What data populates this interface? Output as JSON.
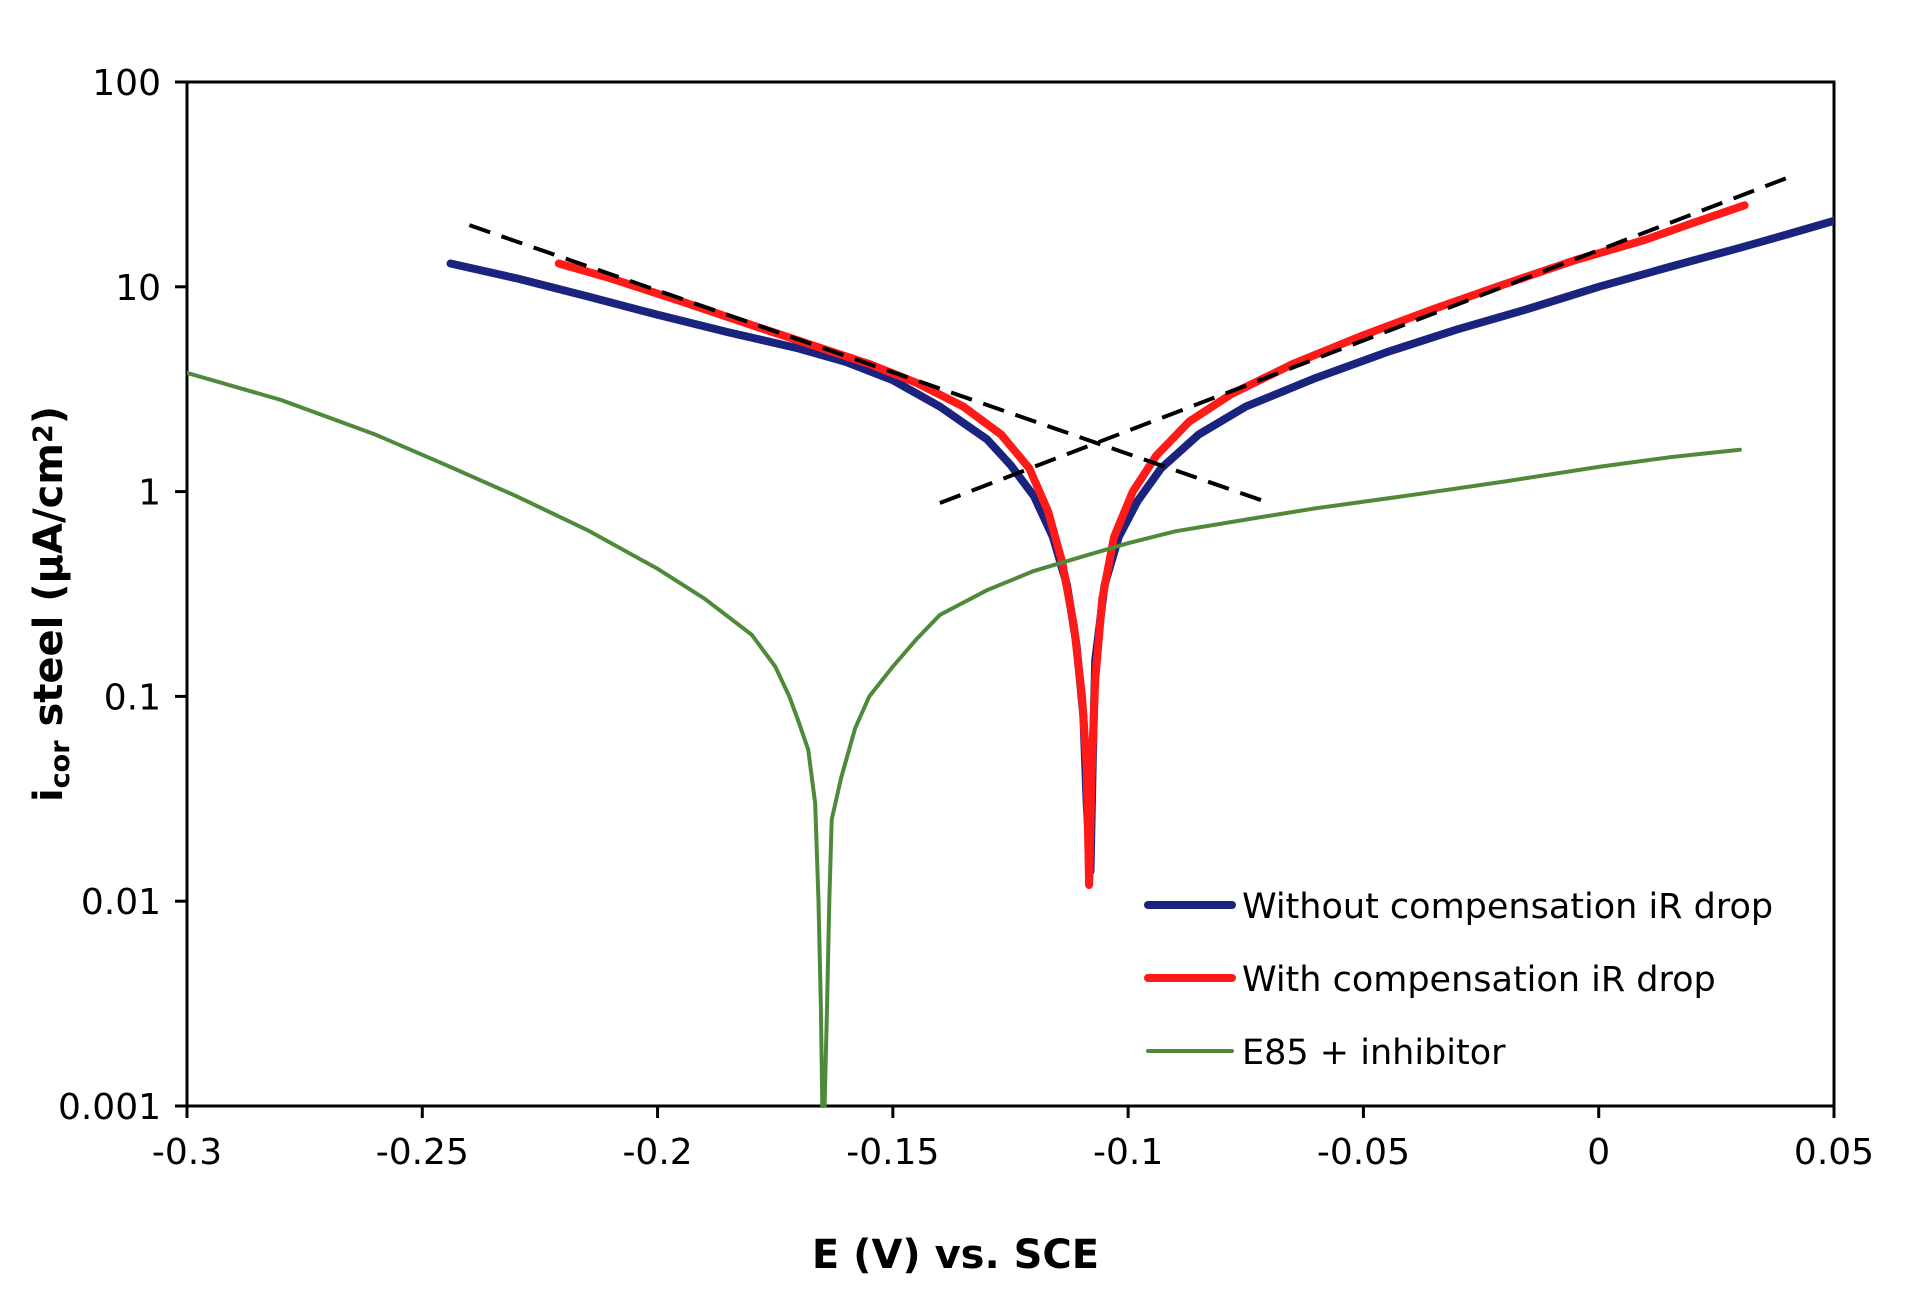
{
  "chart_data": {
    "type": "line",
    "title": "",
    "xlabel": "E (V) vs. SCE",
    "ylabel": {
      "main": "i",
      "sub": "cor",
      "rest": " steel (µA/cm",
      "sup": "2",
      "close": ")"
    },
    "xlim": [
      -0.3,
      0.05
    ],
    "ylim": [
      0.001,
      100
    ],
    "yscale": "log",
    "grid": false,
    "legend_position": "bottom-right",
    "x_ticks": [
      -0.3,
      -0.25,
      -0.2,
      -0.15,
      -0.1,
      -0.05,
      0,
      0.05
    ],
    "x_tick_labels": [
      "-0.3",
      "-0.25",
      "-0.2",
      "-0.15",
      "-0.1",
      "-0.05",
      "0",
      "0.05"
    ],
    "y_ticks": [
      0.001,
      0.01,
      0.1,
      1,
      10,
      100
    ],
    "y_tick_labels": [
      "0.001",
      "0.01",
      "0.1",
      "1",
      "10",
      "100"
    ],
    "series": [
      {
        "name": "Without compensation iR drop",
        "color": "#1a237e",
        "points": [
          [
            -0.244,
            13
          ],
          [
            -0.23,
            11
          ],
          [
            -0.215,
            9
          ],
          [
            -0.2,
            7.3
          ],
          [
            -0.185,
            6
          ],
          [
            -0.17,
            5
          ],
          [
            -0.16,
            4.3
          ],
          [
            -0.15,
            3.5
          ],
          [
            -0.14,
            2.6
          ],
          [
            -0.13,
            1.8
          ],
          [
            -0.125,
            1.35
          ],
          [
            -0.12,
            0.95
          ],
          [
            -0.116,
            0.6
          ],
          [
            -0.113,
            0.35
          ],
          [
            -0.111,
            0.18
          ],
          [
            -0.1095,
            0.08
          ],
          [
            -0.1088,
            0.03
          ],
          [
            -0.108,
            0.014
          ],
          [
            -0.1075,
            0.05
          ],
          [
            -0.107,
            0.15
          ],
          [
            -0.105,
            0.35
          ],
          [
            -0.102,
            0.6
          ],
          [
            -0.098,
            0.9
          ],
          [
            -0.093,
            1.3
          ],
          [
            -0.085,
            1.9
          ],
          [
            -0.075,
            2.6
          ],
          [
            -0.06,
            3.6
          ],
          [
            -0.045,
            4.8
          ],
          [
            -0.03,
            6.2
          ],
          [
            -0.015,
            7.8
          ],
          [
            0,
            10
          ],
          [
            0.015,
            12.5
          ],
          [
            0.03,
            15.5
          ],
          [
            0.04,
            18
          ],
          [
            0.05,
            21
          ]
        ]
      },
      {
        "name": "With compensation iR drop",
        "color": "#ff1a1a",
        "points": [
          [
            -0.221,
            13
          ],
          [
            -0.21,
            11
          ],
          [
            -0.195,
            8.5
          ],
          [
            -0.18,
            6.5
          ],
          [
            -0.165,
            5
          ],
          [
            -0.155,
            4.2
          ],
          [
            -0.145,
            3.4
          ],
          [
            -0.135,
            2.6
          ],
          [
            -0.127,
            1.9
          ],
          [
            -0.121,
            1.3
          ],
          [
            -0.117,
            0.8
          ],
          [
            -0.114,
            0.45
          ],
          [
            -0.1115,
            0.22
          ],
          [
            -0.1098,
            0.1
          ],
          [
            -0.1088,
            0.045
          ],
          [
            -0.1083,
            0.012
          ],
          [
            -0.1078,
            0.04
          ],
          [
            -0.107,
            0.12
          ],
          [
            -0.1055,
            0.3
          ],
          [
            -0.103,
            0.6
          ],
          [
            -0.099,
            1.0
          ],
          [
            -0.094,
            1.5
          ],
          [
            -0.087,
            2.2
          ],
          [
            -0.078,
            3.0
          ],
          [
            -0.065,
            4.2
          ],
          [
            -0.05,
            5.8
          ],
          [
            -0.035,
            7.8
          ],
          [
            -0.02,
            10.3
          ],
          [
            -0.005,
            13.5
          ],
          [
            0.01,
            17
          ],
          [
            0.02,
            20.5
          ],
          [
            0.031,
            25
          ]
        ]
      },
      {
        "name": "E85 + inhibitor",
        "color": "#4f8a3a",
        "points": [
          [
            -0.3,
            3.8
          ],
          [
            -0.28,
            2.8
          ],
          [
            -0.26,
            1.9
          ],
          [
            -0.245,
            1.35
          ],
          [
            -0.23,
            0.95
          ],
          [
            -0.215,
            0.65
          ],
          [
            -0.2,
            0.42
          ],
          [
            -0.19,
            0.3
          ],
          [
            -0.18,
            0.2
          ],
          [
            -0.175,
            0.14
          ],
          [
            -0.172,
            0.1
          ],
          [
            -0.17,
            0.075
          ],
          [
            -0.168,
            0.055
          ],
          [
            -0.1665,
            0.03
          ],
          [
            -0.1658,
            0.01
          ],
          [
            -0.1653,
            0.003
          ],
          [
            -0.165,
            0.001
          ],
          [
            -0.1645,
            0.001
          ],
          [
            -0.164,
            0.003
          ],
          [
            -0.1635,
            0.01
          ],
          [
            -0.163,
            0.025
          ],
          [
            -0.161,
            0.04
          ],
          [
            -0.158,
            0.07
          ],
          [
            -0.155,
            0.1
          ],
          [
            -0.15,
            0.14
          ],
          [
            -0.145,
            0.19
          ],
          [
            -0.14,
            0.25
          ],
          [
            -0.13,
            0.33
          ],
          [
            -0.12,
            0.41
          ],
          [
            -0.11,
            0.48
          ],
          [
            -0.1,
            0.56
          ],
          [
            -0.09,
            0.64
          ],
          [
            -0.075,
            0.73
          ],
          [
            -0.06,
            0.83
          ],
          [
            -0.04,
            0.96
          ],
          [
            -0.02,
            1.12
          ],
          [
            0,
            1.32
          ],
          [
            0.015,
            1.47
          ],
          [
            0.03,
            1.6
          ]
        ]
      }
    ],
    "annotations": [
      {
        "name": "cathodic Tafel fit",
        "style": "dashed",
        "color": "#000000",
        "points": [
          [
            -0.24,
            20
          ],
          [
            -0.07,
            0.88
          ]
        ]
      },
      {
        "name": "anodic Tafel fit",
        "style": "dashed",
        "color": "#000000",
        "points": [
          [
            -0.14,
            0.88
          ],
          [
            0.04,
            34
          ]
        ]
      }
    ]
  }
}
